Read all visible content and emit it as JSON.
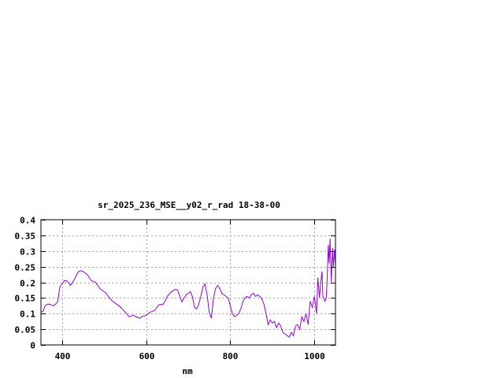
{
  "chart_data": {
    "type": "line",
    "title": "sr_2025_236_MSE__y02_r_rad 18-38-00",
    "xlabel": "nm",
    "ylabel": "",
    "xlim": [
      350,
      1050
    ],
    "ylim": [
      0,
      0.4
    ],
    "x_ticks": [
      {
        "value": 400,
        "label": "400"
      },
      {
        "value": 600,
        "label": "600"
      },
      {
        "value": 800,
        "label": "800"
      },
      {
        "value": 1000,
        "label": "1000"
      }
    ],
    "y_ticks": [
      {
        "value": 0,
        "label": "0"
      },
      {
        "value": 0.05,
        "label": "0.05"
      },
      {
        "value": 0.1,
        "label": "0.1"
      },
      {
        "value": 0.15,
        "label": "0.15"
      },
      {
        "value": 0.2,
        "label": "0.2"
      },
      {
        "value": 0.25,
        "label": "0.25"
      },
      {
        "value": 0.3,
        "label": "0.3"
      },
      {
        "value": 0.35,
        "label": "0.35"
      },
      {
        "value": 0.4,
        "label": "0.4"
      }
    ],
    "grid": true,
    "series": [
      {
        "color": "#9400d3",
        "x": [
          350,
          355,
          360,
          365,
          370,
          380,
          385,
          390,
          395,
          400,
          403,
          405,
          410,
          415,
          420,
          425,
          430,
          435,
          440,
          445,
          450,
          455,
          460,
          470,
          480,
          485,
          490,
          495,
          500,
          505,
          510,
          520,
          530,
          540,
          550,
          560,
          570,
          575,
          580,
          585,
          590,
          595,
          600,
          610,
          620,
          630,
          640,
          645,
          650,
          660,
          670,
          675,
          680,
          685,
          690,
          695,
          700,
          705,
          710,
          715,
          720,
          725,
          730,
          735,
          740,
          745,
          750,
          755,
          760,
          765,
          770,
          775,
          780,
          785,
          790,
          795,
          800,
          805,
          810,
          815,
          820,
          825,
          830,
          835,
          840,
          845,
          850,
          855,
          860,
          865,
          870,
          875,
          880,
          885,
          890,
          895,
          900,
          905,
          910,
          915,
          920,
          925,
          930,
          935,
          940,
          945,
          950,
          955,
          960,
          965,
          970,
          975,
          980,
          985,
          990,
          995,
          1000,
          1005,
          1008,
          1012,
          1015,
          1018,
          1020,
          1025,
          1028,
          1030,
          1033,
          1035,
          1037,
          1040,
          1043,
          1045,
          1048,
          1050
        ],
        "y": [
          0.105,
          0.107,
          0.125,
          0.13,
          0.13,
          0.125,
          0.13,
          0.14,
          0.185,
          0.195,
          0.2,
          0.205,
          0.205,
          0.2,
          0.19,
          0.2,
          0.21,
          0.225,
          0.235,
          0.237,
          0.235,
          0.23,
          0.225,
          0.205,
          0.2,
          0.19,
          0.18,
          0.175,
          0.17,
          0.165,
          0.155,
          0.14,
          0.13,
          0.12,
          0.105,
          0.09,
          0.095,
          0.09,
          0.088,
          0.085,
          0.09,
          0.092,
          0.095,
          0.105,
          0.11,
          0.128,
          0.13,
          0.14,
          0.155,
          0.17,
          0.178,
          0.175,
          0.155,
          0.138,
          0.15,
          0.16,
          0.165,
          0.17,
          0.155,
          0.12,
          0.115,
          0.13,
          0.155,
          0.185,
          0.195,
          0.16,
          0.105,
          0.085,
          0.15,
          0.18,
          0.19,
          0.18,
          0.165,
          0.16,
          0.155,
          0.15,
          0.125,
          0.1,
          0.09,
          0.095,
          0.1,
          0.115,
          0.14,
          0.15,
          0.155,
          0.15,
          0.16,
          0.165,
          0.155,
          0.16,
          0.155,
          0.148,
          0.13,
          0.1,
          0.065,
          0.08,
          0.07,
          0.075,
          0.055,
          0.07,
          0.06,
          0.04,
          0.035,
          0.03,
          0.025,
          0.04,
          0.03,
          0.06,
          0.065,
          0.05,
          0.09,
          0.075,
          0.1,
          0.065,
          0.14,
          0.12,
          0.155,
          0.1,
          0.215,
          0.15,
          0.2,
          0.235,
          0.155,
          0.14,
          0.15,
          0.2,
          0.32,
          0.26,
          0.34,
          0.2,
          0.31,
          0.25,
          0.305,
          0.25
        ]
      }
    ]
  }
}
